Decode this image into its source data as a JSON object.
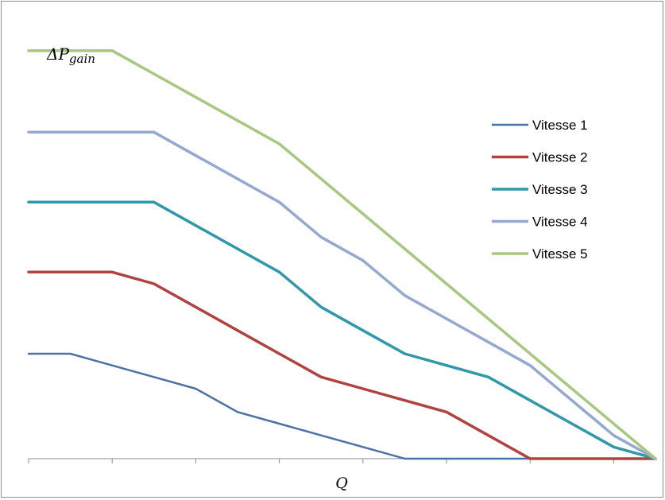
{
  "chart_data": {
    "type": "line",
    "title": "",
    "xlabel": "Q",
    "ylabel": "ΔP",
    "ylabel_subscript": "gain",
    "x_categories": 15,
    "ylim": [
      0,
      18
    ],
    "grid": false,
    "legend_position": "right",
    "series": [
      {
        "name": "Vitesse 1",
        "color": "#4a72a6",
        "values": [
          [
            0,
            4.5
          ],
          [
            1,
            4.5
          ],
          [
            2,
            4.0
          ],
          [
            3,
            3.5
          ],
          [
            4,
            3.0
          ],
          [
            5,
            2.0
          ],
          [
            6,
            1.5
          ],
          [
            7,
            1.0
          ],
          [
            8,
            0.5
          ],
          [
            9,
            0
          ],
          [
            10,
            0
          ],
          [
            11,
            0
          ],
          [
            12,
            0
          ],
          [
            13,
            0
          ],
          [
            14,
            0
          ],
          [
            15,
            0
          ]
        ]
      },
      {
        "name": "Vitesse 2",
        "color": "#b0433f",
        "values": [
          [
            0,
            8.0
          ],
          [
            1,
            8.0
          ],
          [
            2,
            8.0
          ],
          [
            3,
            7.5
          ],
          [
            4,
            6.5
          ],
          [
            5,
            5.5
          ],
          [
            6,
            4.5
          ],
          [
            7,
            3.5
          ],
          [
            8,
            3.0
          ],
          [
            9,
            2.5
          ],
          [
            10,
            2.0
          ],
          [
            11,
            1.0
          ],
          [
            12,
            0
          ],
          [
            13,
            0
          ],
          [
            14,
            0
          ],
          [
            15,
            0
          ]
        ]
      },
      {
        "name": "Vitesse 3",
        "color": "#2f98ab",
        "values": [
          [
            0,
            11.0
          ],
          [
            1,
            11.0
          ],
          [
            2,
            11.0
          ],
          [
            3,
            11.0
          ],
          [
            4,
            10.0
          ],
          [
            5,
            9.0
          ],
          [
            6,
            8.0
          ],
          [
            7,
            6.5
          ],
          [
            8,
            5.5
          ],
          [
            9,
            4.5
          ],
          [
            10,
            4.0
          ],
          [
            11,
            3.5
          ],
          [
            12,
            2.5
          ],
          [
            13,
            1.5
          ],
          [
            14,
            0.5
          ],
          [
            15,
            0
          ]
        ]
      },
      {
        "name": "Vitesse 4",
        "color": "#94a8d2",
        "values": [
          [
            0,
            14.0
          ],
          [
            1,
            14.0
          ],
          [
            2,
            14.0
          ],
          [
            3,
            14.0
          ],
          [
            4,
            13.0
          ],
          [
            5,
            12.0
          ],
          [
            6,
            11.0
          ],
          [
            7,
            9.5
          ],
          [
            8,
            8.5
          ],
          [
            9,
            7.0
          ],
          [
            10,
            6.0
          ],
          [
            11,
            5.0
          ],
          [
            12,
            4.0
          ],
          [
            13,
            2.5
          ],
          [
            14,
            1.0
          ],
          [
            15,
            0
          ]
        ]
      },
      {
        "name": "Vitesse 5",
        "color": "#a8c880",
        "values": [
          [
            0,
            17.5
          ],
          [
            1,
            17.5
          ],
          [
            2,
            17.5
          ],
          [
            3,
            16.5
          ],
          [
            4,
            15.5
          ],
          [
            5,
            14.5
          ],
          [
            6,
            13.5
          ],
          [
            7,
            12.0
          ],
          [
            8,
            10.5
          ],
          [
            9,
            9.0
          ],
          [
            10,
            7.5
          ],
          [
            11,
            6.0
          ],
          [
            12,
            4.5
          ],
          [
            13,
            3.0
          ],
          [
            14,
            1.5
          ],
          [
            15,
            0
          ]
        ]
      }
    ]
  }
}
